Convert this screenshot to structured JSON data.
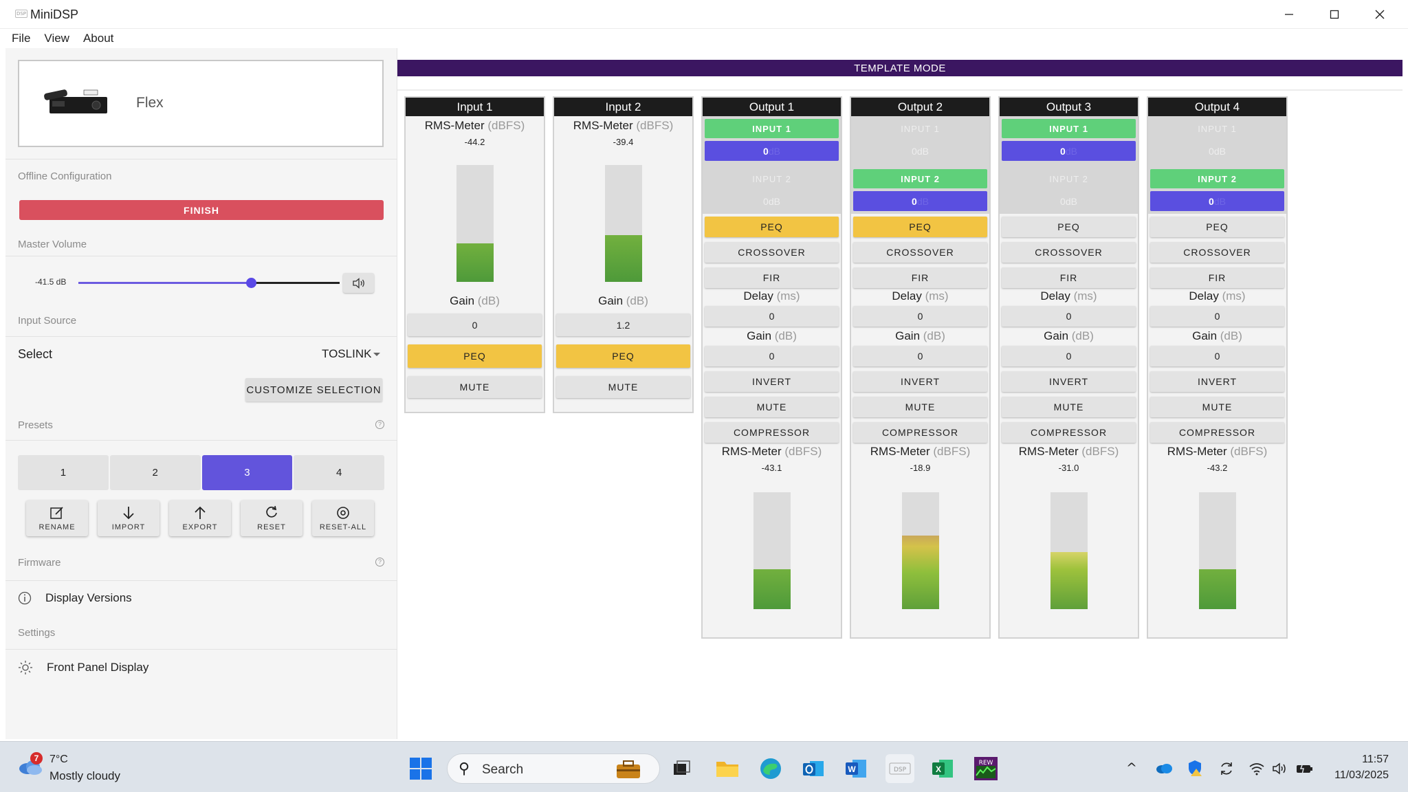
{
  "window": {
    "title": "MiniDSP"
  },
  "menu": [
    "File",
    "View",
    "About"
  ],
  "device": {
    "name": "Flex"
  },
  "left": {
    "offline_label": "Offline Configuration",
    "finish_label": "FINISH",
    "master_volume_label": "Master Volume",
    "volume_value": "-41.5 dB",
    "volume_fraction": 0.66,
    "input_source_label": "Input Source",
    "select_label": "Select",
    "select_value": "TOSLINK",
    "customize_label": "CUSTOMIZE SELECTION",
    "presets_label": "Presets",
    "presets": [
      "1",
      "2",
      "3",
      "4"
    ],
    "active_preset": "3",
    "actions": [
      {
        "label": "RENAME",
        "icon": "edit-icon"
      },
      {
        "label": "IMPORT",
        "icon": "import-icon"
      },
      {
        "label": "EXPORT",
        "icon": "export-icon"
      },
      {
        "label": "RESET",
        "icon": "reset-icon"
      },
      {
        "label": "RESET-ALL",
        "icon": "reset-all-icon"
      }
    ],
    "firmware_label": "Firmware",
    "display_versions_label": "Display Versions",
    "settings_label": "Settings",
    "front_panel_label": "Front Panel Display"
  },
  "main": {
    "template_mode": "TEMPLATE MODE",
    "rms_label": "RMS-Meter",
    "dbfs_unit": "(dBFS)",
    "gain_label": "Gain",
    "db_unit": "(dB)",
    "delay_label": "Delay",
    "ms_unit": "(ms)",
    "peq_label": "PEQ",
    "mute_label": "MUTE",
    "crossover_label": "CROSSOVER",
    "fir_label": "FIR",
    "invert_label": "INVERT",
    "compressor_label": "COMPRESSOR",
    "route_db_unit": "dB",
    "inputs": [
      {
        "name": "Input 1",
        "rms": "-44.2",
        "gain": "0",
        "level": 0.33,
        "peq_on": true
      },
      {
        "name": "Input 2",
        "rms": "-39.4",
        "gain": "1.2",
        "level": 0.4,
        "peq_on": true
      }
    ],
    "outputs": [
      {
        "name": "Output 1",
        "in1_label": "INPUT 1",
        "in1_on": true,
        "in1_db": "0",
        "in2_label": "INPUT 2",
        "in2_on": false,
        "in2_db": "0",
        "peq_on": true,
        "delay": "0",
        "gain": "0",
        "rms": "-43.1",
        "level": 0.34
      },
      {
        "name": "Output 2",
        "in1_label": "INPUT 1",
        "in1_on": false,
        "in1_db": "0",
        "in2_label": "INPUT 2",
        "in2_on": true,
        "in2_db": "0",
        "peq_on": true,
        "delay": "0",
        "gain": "0",
        "rms": "-18.9",
        "level": 0.63
      },
      {
        "name": "Output 3",
        "in1_label": "INPUT 1",
        "in1_on": true,
        "in1_db": "0",
        "in2_label": "INPUT 2",
        "in2_on": false,
        "in2_db": "0",
        "peq_on": false,
        "delay": "0",
        "gain": "0",
        "rms": "-31.0",
        "level": 0.49
      },
      {
        "name": "Output 4",
        "in1_label": "INPUT 1",
        "in1_on": false,
        "in1_db": "0",
        "in2_label": "INPUT 2",
        "in2_on": true,
        "in2_db": "0",
        "peq_on": false,
        "delay": "0",
        "gain": "0",
        "rms": "-43.2",
        "level": 0.34
      }
    ]
  },
  "taskbar": {
    "weather_badge": "7",
    "temperature": "7°C",
    "weather": "Mostly cloudy",
    "search_placeholder": "Search",
    "time": "11:57",
    "date": "11/03/2025",
    "rew_label": "REW"
  },
  "colors": {
    "accent": "#6254dc",
    "finish": "#d9505e",
    "peq_active": "#f2c443",
    "route_on": "#5fd07a",
    "template_bar": "#3b1661"
  }
}
